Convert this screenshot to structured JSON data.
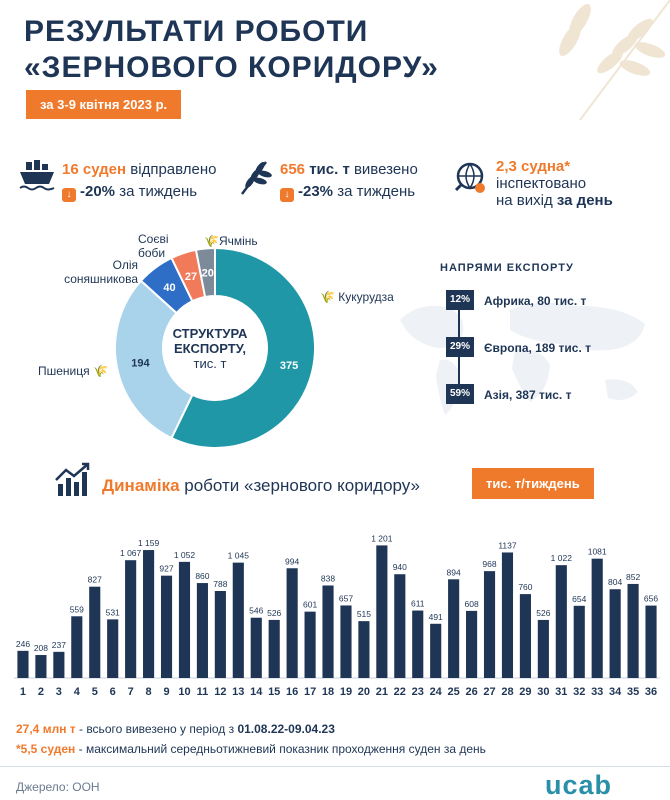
{
  "title_line1": "РЕЗУЛЬТАТИ РОБОТИ",
  "title_line2": "«ЗЕРНОВОГО КОРИДОРУ»",
  "date": "за 3-9 квітня 2023 р.",
  "stats": {
    "ships": {
      "num": "16 суден",
      "text": " відправлено",
      "change": "-20%",
      "change_text": " за тиждень"
    },
    "tons": {
      "num": "656",
      "unit": " тис. т",
      "text": " вивезено",
      "change": "-23%",
      "change_text": " за тиждень"
    },
    "inspected": {
      "num": "2,3 судна*",
      "line2": "інспектовано",
      "line3_a": "на вихід ",
      "line3_b": "за день"
    }
  },
  "pie": {
    "center": [
      "СТРУКТУРА",
      "ЕКСПОРТУ,",
      "тис. т"
    ],
    "slices": [
      {
        "name": "Кукурудза",
        "value": 375,
        "color": "#1f97a6"
      },
      {
        "name": "Пшениця",
        "value": 194,
        "color": "#a9d3ea"
      },
      {
        "name": "Олія соняшникова",
        "value": 40,
        "color": "#2f6ec7"
      },
      {
        "name": "Соєві боби",
        "value": 27,
        "color": "#f07a5a"
      },
      {
        "name": "Ячмінь",
        "value": 20,
        "color": "#7d8a99"
      }
    ],
    "label_oil_1": "Олія",
    "label_oil_2": "соняшникова",
    "label_soy_1": "Соєві",
    "label_soy_2": "боби"
  },
  "directions": {
    "title": "НАПРЯМИ ЕКСПОРТУ",
    "items": [
      {
        "pct": "12%",
        "label": "Африка, 80 тис. т"
      },
      {
        "pct": "29%",
        "label": "Європа, 189 тис. т"
      },
      {
        "pct": "59%",
        "label": "Азія, 387 тис. т"
      }
    ]
  },
  "dynamics": {
    "title_hl": "Динаміка",
    "title_rest": " роботи «зернового коридору»",
    "unit": "тис. т/тиждень"
  },
  "chart_data": {
    "type": "bar",
    "title": "Динаміка роботи «зернового коридору»",
    "ylabel": "тис. т/тиждень",
    "categories": [
      "1",
      "2",
      "3",
      "4",
      "5",
      "6",
      "7",
      "8",
      "9",
      "10",
      "11",
      "12",
      "13",
      "14",
      "15",
      "16",
      "17",
      "18",
      "19",
      "20",
      "21",
      "22",
      "23",
      "24",
      "25",
      "26",
      "27",
      "28",
      "29",
      "30",
      "31",
      "32",
      "33",
      "34",
      "35",
      "36"
    ],
    "values": [
      246,
      208,
      237,
      559,
      827,
      531,
      1067,
      1159,
      927,
      1052,
      860,
      788,
      1045,
      546,
      526,
      994,
      601,
      838,
      657,
      515,
      1201,
      940,
      611,
      491,
      894,
      608,
      968,
      1137,
      760,
      526,
      1022,
      654,
      1081,
      804,
      852,
      656
    ],
    "value_labels": [
      "246",
      "208",
      "237",
      "559",
      "827",
      "531",
      "1 067",
      "1 159",
      "927",
      "1 052",
      "860",
      "788",
      "1 045",
      "546",
      "526",
      "994",
      "601",
      "838",
      "657",
      "515",
      "1 201",
      "940",
      "611",
      "491",
      "894",
      "608",
      "968",
      "1137",
      "760",
      "526",
      "1 022",
      "654",
      "1081",
      "804",
      "852",
      "656"
    ],
    "ylim": [
      0,
      1250
    ],
    "color": "#1e3555"
  },
  "footnotes": {
    "total_hl": "27,4 млн т",
    "total_text": " - всього вивезено у період з ",
    "total_period": "01.08.22-09.04.23",
    "max_hl": "*5,5 суден",
    "max_text": " - максимальний середньотижневий показник проходження суден за день"
  },
  "source": "Джерело: ООН",
  "logo": "ucab"
}
